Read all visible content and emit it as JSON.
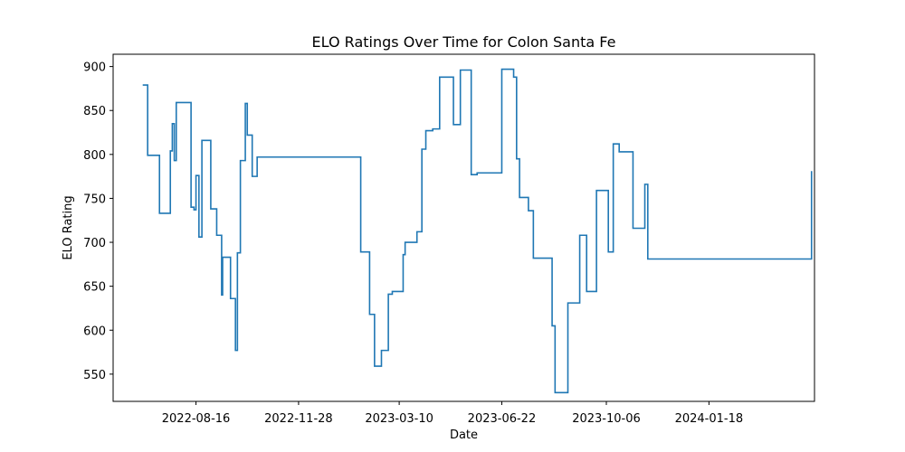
{
  "chart_data": {
    "type": "line",
    "title": "ELO Ratings Over Time for Colon Santa Fe",
    "xlabel": "Date",
    "ylabel": "ELO Rating",
    "ylim": [
      519,
      914
    ],
    "xlim": [
      "2022-05-24",
      "2024-05-04"
    ],
    "grid": false,
    "legend": "none",
    "line_color": "#1f77b4",
    "xticks": [
      "2022-08-16",
      "2022-11-28",
      "2023-03-10",
      "2023-06-22",
      "2023-10-06",
      "2024-01-18"
    ],
    "yticks": [
      550,
      600,
      650,
      700,
      750,
      800,
      850,
      900
    ],
    "series": [
      {
        "step": "post",
        "x": [
          "2022-06-23",
          "2022-06-28",
          "2022-07-03",
          "2022-07-10",
          "2022-07-16",
          "2022-07-21",
          "2022-07-23",
          "2022-07-25",
          "2022-07-27",
          "2022-08-06",
          "2022-08-11",
          "2022-08-14",
          "2022-08-16",
          "2022-08-19",
          "2022-08-22",
          "2022-08-29",
          "2022-08-31",
          "2022-09-06",
          "2022-09-11",
          "2022-09-12",
          "2022-09-20",
          "2022-09-25",
          "2022-09-27",
          "2022-09-30",
          "2022-10-05",
          "2022-10-07",
          "2022-10-12",
          "2022-10-17",
          "2022-10-18",
          "2022-10-25",
          "2023-01-30",
          "2023-02-08",
          "2023-02-13",
          "2023-02-20",
          "2023-02-27",
          "2023-03-03",
          "2023-03-07",
          "2023-03-14",
          "2023-03-16",
          "2023-03-22",
          "2023-03-28",
          "2023-03-30",
          "2023-04-02",
          "2023-04-06",
          "2023-04-13",
          "2023-04-20",
          "2023-04-26",
          "2023-05-04",
          "2023-05-11",
          "2023-05-14",
          "2023-05-22",
          "2023-05-28",
          "2023-06-04",
          "2023-06-22",
          "2023-06-29",
          "2023-07-04",
          "2023-07-07",
          "2023-07-10",
          "2023-07-19",
          "2023-07-24",
          "2023-07-26",
          "2023-08-12",
          "2023-08-15",
          "2023-08-25",
          "2023-08-28",
          "2023-09-09",
          "2023-09-13",
          "2023-09-16",
          "2023-09-23",
          "2023-09-26",
          "2023-10-08",
          "2023-10-13",
          "2023-10-19",
          "2023-10-23",
          "2023-11-02",
          "2023-11-05",
          "2023-11-14",
          "2023-11-17",
          "2024-05-01"
        ],
        "values": [
          879,
          799,
          799,
          733,
          733,
          804,
          835,
          793,
          859,
          859,
          740,
          737,
          776,
          706,
          816,
          816,
          738,
          708,
          640,
          683,
          636,
          577,
          688,
          793,
          858,
          822,
          775,
          797,
          797,
          797,
          689,
          618,
          559,
          577,
          641,
          644,
          644,
          686,
          700,
          700,
          712,
          712,
          806,
          827,
          829,
          888,
          888,
          834,
          896,
          896,
          777,
          779,
          779,
          897,
          897,
          888,
          795,
          751,
          736,
          682,
          682,
          605,
          529,
          529,
          631,
          708,
          708,
          644,
          644,
          759,
          689,
          812,
          803,
          803,
          716,
          716,
          766,
          681,
          781
        ]
      }
    ]
  }
}
